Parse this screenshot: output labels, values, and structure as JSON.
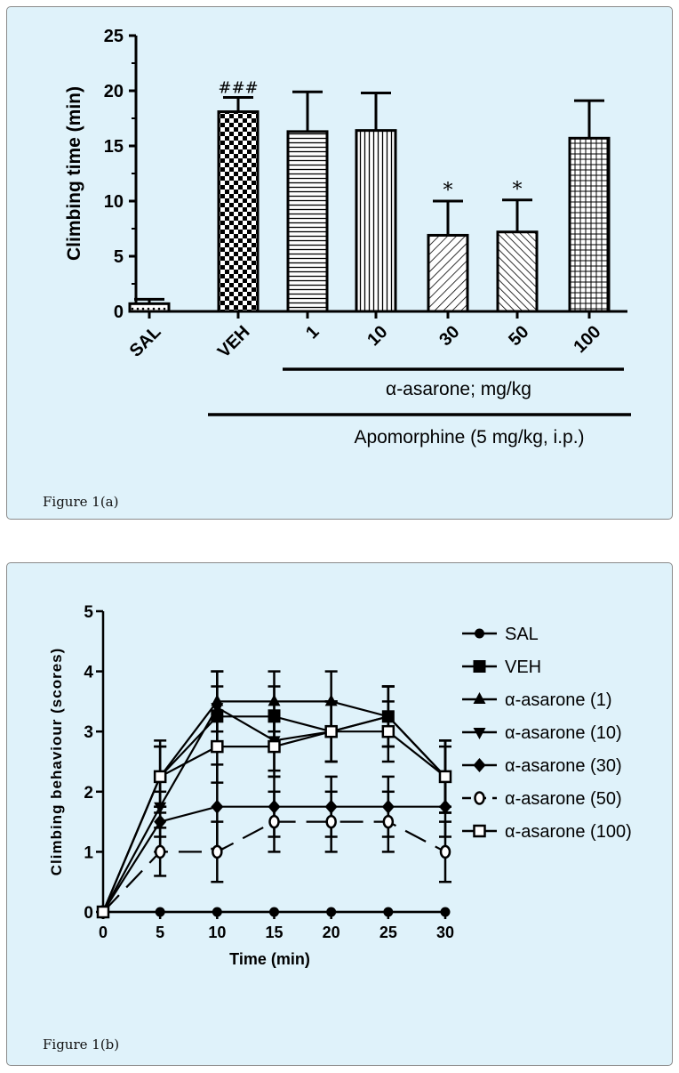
{
  "panels": {
    "a": {
      "caption": "Figure 1(a)"
    },
    "b": {
      "caption": "Figure 1(b)"
    }
  },
  "chart_data": [
    {
      "type": "bar",
      "ylabel": "Climbing time (min)",
      "xlabel": "",
      "ylim": [
        0,
        25
      ],
      "yticks": [
        "0",
        "5",
        "10",
        "15",
        "20",
        "25"
      ],
      "categories": [
        "SAL",
        "VEH",
        "1",
        "10",
        "30",
        "50",
        "100"
      ],
      "values": [
        0.7,
        18.1,
        16.3,
        16.4,
        6.9,
        7.2,
        15.7
      ],
      "errors": [
        0.4,
        1.3,
        3.6,
        3.4,
        3.1,
        2.9,
        3.4
      ],
      "patterns": [
        "dots",
        "checker",
        "hlines",
        "vlines",
        "diag-right",
        "diag-left",
        "grid"
      ],
      "annotations": [
        "",
        "###",
        "",
        "",
        "*",
        "*",
        ""
      ],
      "group_labels": [
        "α-asarone; mg/kg",
        "Apomorphine (5 mg/kg, i.p.)"
      ]
    },
    {
      "type": "line",
      "xlabel": "Time (min)",
      "ylabel": "Climbing behaviour (scores)",
      "xlim": [
        0,
        30
      ],
      "ylim": [
        0,
        5
      ],
      "x": [
        0,
        5,
        10,
        15,
        20,
        25,
        30
      ],
      "xticks": [
        "0",
        "5",
        "10",
        "15",
        "20",
        "25",
        "30"
      ],
      "yticks": [
        "0",
        "1",
        "2",
        "3",
        "4",
        "5"
      ],
      "legend_position": "right",
      "series": [
        {
          "name": "SAL",
          "marker": "circle-filled",
          "dashed": false,
          "values": [
            0,
            0,
            0,
            0,
            0,
            0,
            0
          ],
          "errors": [
            0,
            0,
            0,
            0,
            0,
            0,
            0
          ]
        },
        {
          "name": "VEH",
          "marker": "square-filled",
          "dashed": false,
          "values": [
            0,
            2.25,
            3.25,
            3.25,
            3.0,
            3.25,
            2.25
          ],
          "errors": [
            0,
            0.5,
            0.5,
            0.5,
            0.5,
            0.5,
            0.5
          ]
        },
        {
          "name": "α-asarone (1)",
          "marker": "triangle-up",
          "dashed": false,
          "values": [
            0,
            2.25,
            3.5,
            3.5,
            3.5,
            3.25,
            2.25
          ],
          "errors": [
            0,
            0.6,
            0.5,
            0.5,
            0.5,
            0.5,
            0.6
          ]
        },
        {
          "name": "α-asarone (10)",
          "marker": "triangle-down",
          "dashed": false,
          "values": [
            0,
            1.75,
            3.4,
            2.85,
            3.0,
            3.25,
            2.25
          ],
          "errors": [
            0,
            0.5,
            0.6,
            0.5,
            0.5,
            0.5,
            0.6
          ]
        },
        {
          "name": "α-asarone (30)",
          "marker": "diamond-filled",
          "dashed": false,
          "values": [
            0,
            1.5,
            1.75,
            1.75,
            1.75,
            1.75,
            1.75
          ],
          "errors": [
            0,
            0.5,
            0.7,
            0.5,
            0.5,
            0.5,
            0.5
          ]
        },
        {
          "name": "α-asarone (50)",
          "marker": "circle-open",
          "dashed": true,
          "values": [
            0,
            1.0,
            1.0,
            1.5,
            1.5,
            1.5,
            1.0
          ],
          "errors": [
            0,
            0.4,
            0.5,
            0.5,
            0.5,
            0.5,
            0.5
          ]
        },
        {
          "name": "α-asarone (100)",
          "marker": "square-open",
          "dashed": false,
          "values": [
            0,
            2.25,
            2.75,
            2.75,
            3.0,
            3.0,
            2.25
          ],
          "errors": [
            0,
            0.5,
            0.6,
            0.5,
            0.5,
            0.5,
            0.6
          ]
        }
      ]
    }
  ]
}
